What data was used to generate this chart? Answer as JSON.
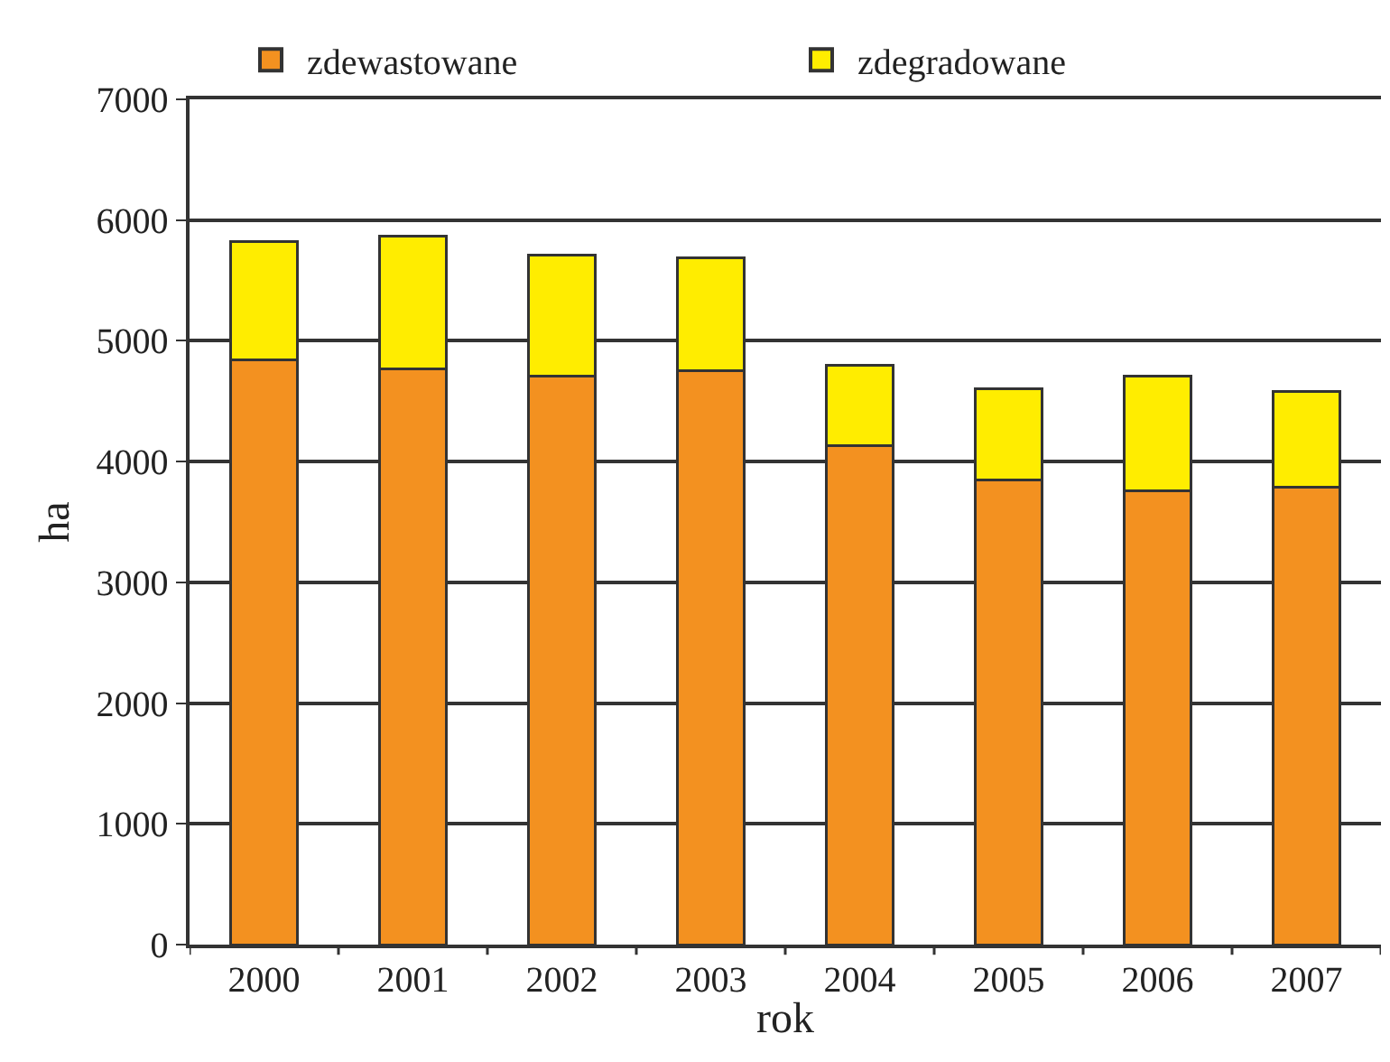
{
  "chart_data": {
    "type": "bar",
    "stacked": true,
    "xlabel": "rok",
    "ylabel": "ha",
    "categories": [
      "2000",
      "2001",
      "2002",
      "2003",
      "2004",
      "2005",
      "2006",
      "2007"
    ],
    "series": [
      {
        "name": "zdewastowane",
        "color": "#f39120",
        "values": [
          4840,
          4770,
          4710,
          4750,
          4130,
          3850,
          3760,
          3790
        ]
      },
      {
        "name": "zdegradowane",
        "color": "#ffed00",
        "values": [
          980,
          1100,
          1000,
          940,
          670,
          750,
          950,
          790
        ]
      }
    ],
    "ylim": [
      0,
      7000
    ],
    "yticks": [
      0,
      1000,
      2000,
      3000,
      4000,
      5000,
      6000,
      7000
    ],
    "grid": "y",
    "legend": "top"
  }
}
